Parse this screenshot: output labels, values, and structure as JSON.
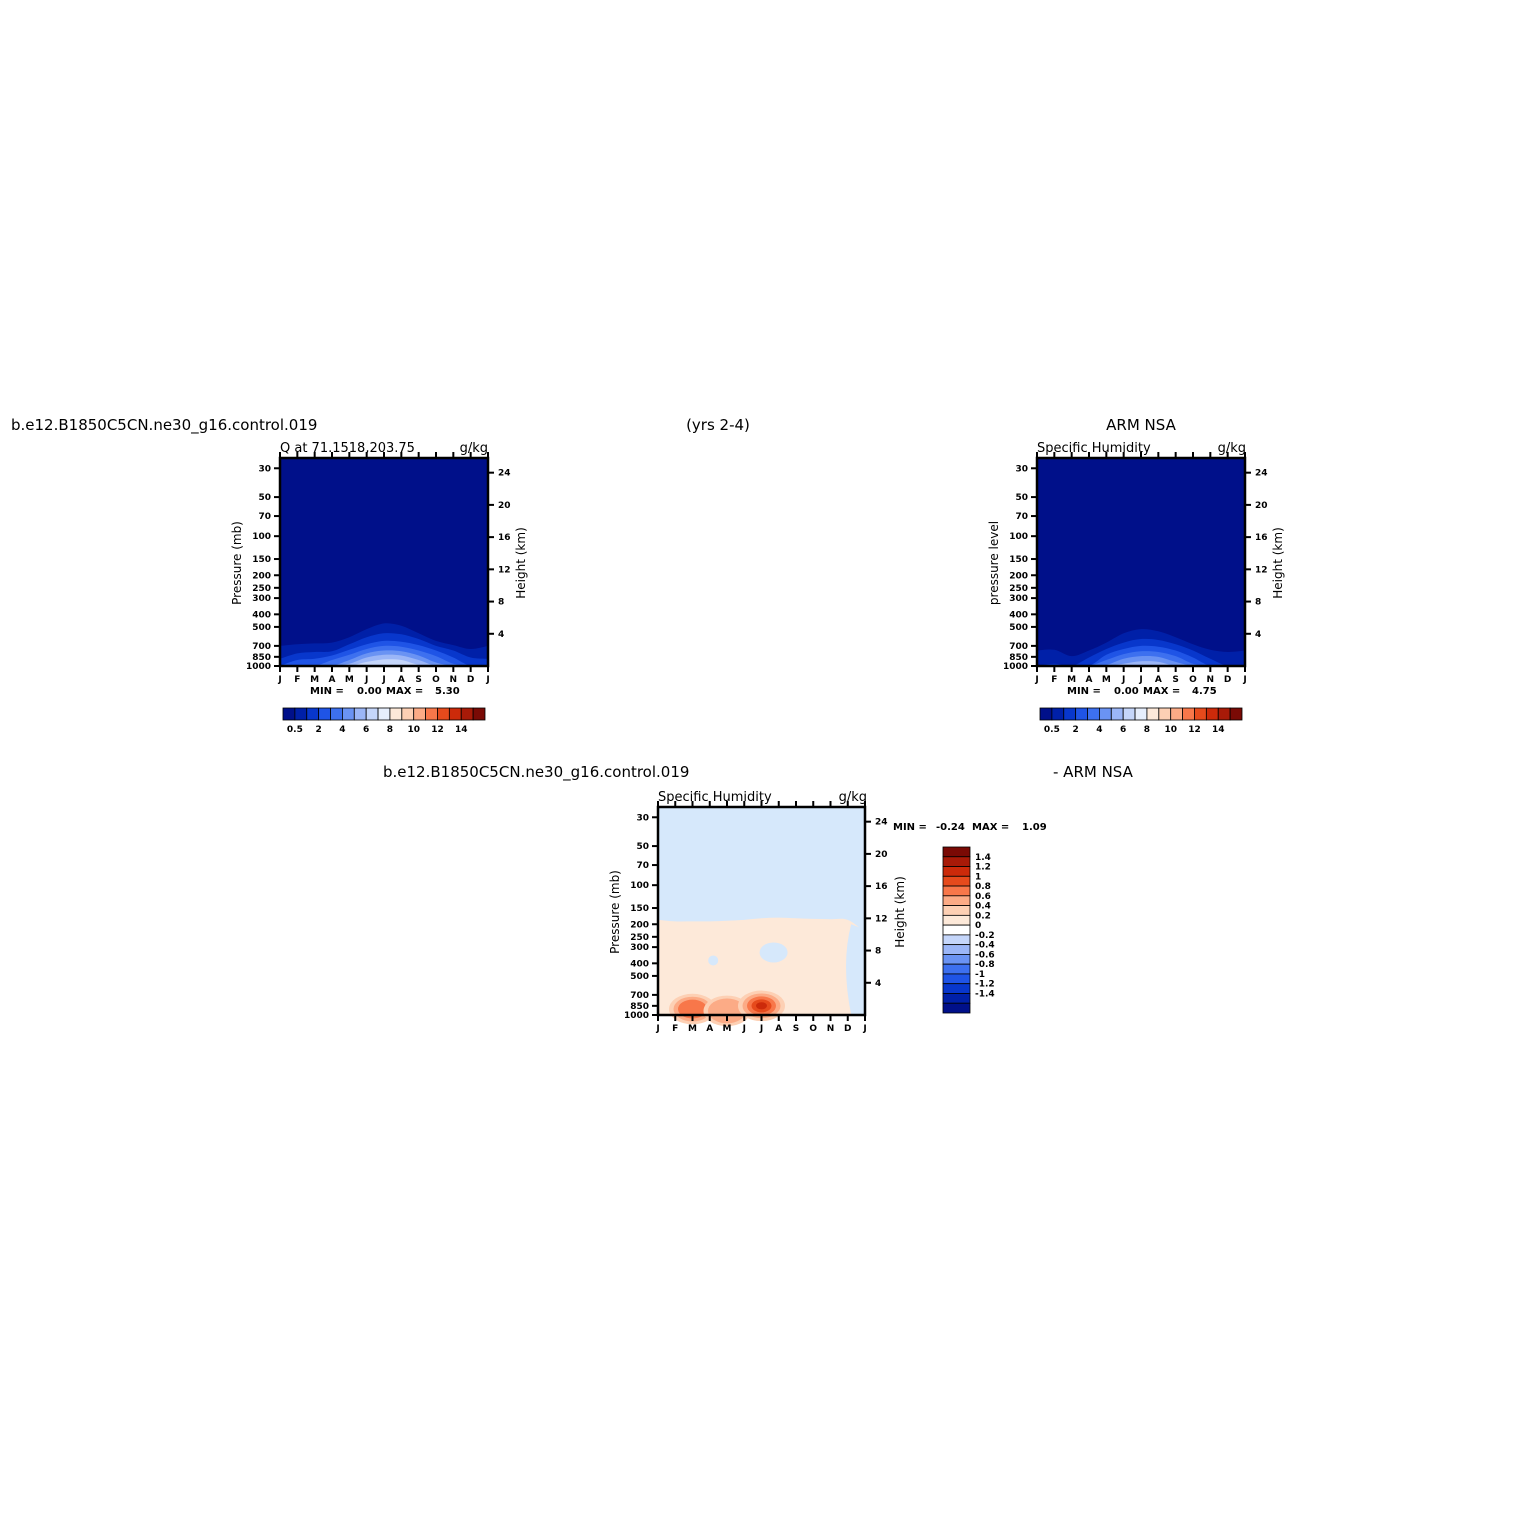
{
  "header": {
    "left": "b.e12.B1850C5CN.ne30_g16.control.019",
    "center": "(yrs 2-4)",
    "right": "ARM NSA"
  },
  "diff_header": {
    "left": "b.e12.B1850C5CN.ne30_g16.control.019",
    "right": "- ARM NSA"
  },
  "pressure_ticks": [
    30,
    50,
    70,
    100,
    150,
    200,
    250,
    300,
    400,
    500,
    700,
    850,
    1000
  ],
  "height_ticks": [
    24,
    20,
    16,
    12,
    8,
    4
  ],
  "months": [
    "J",
    "F",
    "M",
    "A",
    "M",
    "J",
    "J",
    "A",
    "S",
    "O",
    "N",
    "D",
    "J"
  ],
  "colors": {
    "blue_ramp": [
      "#00108a",
      "#0020a8",
      "#0837cc",
      "#1f54e6",
      "#3d70ef",
      "#6a93f3",
      "#9bb6f7",
      "#c5d6fa",
      "#ffffff"
    ],
    "diff_neg": "#d6e8fb",
    "diff_pos": [
      "#fde9d9",
      "#fdd0b4",
      "#fcab86",
      "#f8774a",
      "#e64a1c",
      "#cc2a0a"
    ]
  },
  "panels": [
    {
      "id": "model",
      "title_left": "Q at 71.1518,203.75",
      "title_right": "g/kg",
      "left_axis_label": "Pressure (mb)",
      "right_axis_label": "Height (km)",
      "min_label": "MIN =",
      "min_value": "0.00",
      "max_label": "MAX =",
      "max_value": "5.30"
    },
    {
      "id": "obs",
      "title_left": "Specific Humidity",
      "title_right": "g/kg",
      "left_axis_label": "pressure level",
      "right_axis_label": "Height (km)",
      "min_label": "MIN =",
      "min_value": "0.00",
      "max_label": "MAX =",
      "max_value": "4.75"
    },
    {
      "id": "diff",
      "title_left": "Specific Humidity",
      "title_right": "g/kg",
      "left_axis_label": "Pressure (mb)",
      "right_axis_label": "Height (km)",
      "min_label": "MIN =",
      "min_value": "-0.24",
      "max_label": "MAX =",
      "max_value": "1.09"
    }
  ],
  "colorbar_horizontal": {
    "labels": [
      "0.5",
      "2",
      "4",
      "6",
      "8",
      "10",
      "12",
      "14"
    ],
    "colors": [
      "#00108a",
      "#0020a8",
      "#0837cc",
      "#1f54e6",
      "#3d70ef",
      "#6a93f3",
      "#9bb6f7",
      "#c5d6fa",
      "#e6eefc",
      "#fde9d9",
      "#fdd0b4",
      "#fcab86",
      "#f8774a",
      "#e64a1c",
      "#cc2a0a",
      "#a81a08",
      "#7a0a05"
    ]
  },
  "colorbar_vertical": {
    "labels": [
      "1.4",
      "1.2",
      "1",
      "0.8",
      "0.6",
      "0.4",
      "0.2",
      "0",
      "-0.2",
      "-0.4",
      "-0.6",
      "-0.8",
      "-1",
      "-1.2",
      "-1.4"
    ],
    "colors": [
      "#7a0a05",
      "#a81a08",
      "#cc2a0a",
      "#e64a1c",
      "#f8774a",
      "#fcab86",
      "#fdd0b4",
      "#fde9d9",
      "#ffffff",
      "#c5d6fa",
      "#9bb6f7",
      "#6a93f3",
      "#3d70ef",
      "#1f54e6",
      "#0837cc",
      "#0020a8",
      "#00108a"
    ]
  },
  "chart_data": [
    {
      "type": "heatmap",
      "title": "Q at 71.1518,203.75",
      "units": "g/kg",
      "xlabel": "",
      "ylabel": "Pressure (mb)",
      "ylabel_right": "Height (km)",
      "x": [
        "J",
        "F",
        "M",
        "A",
        "M",
        "J",
        "J",
        "A",
        "S",
        "O",
        "N",
        "D",
        "J"
      ],
      "y_pressure_mb": [
        30,
        50,
        70,
        100,
        150,
        200,
        250,
        300,
        400,
        500,
        700,
        850,
        1000
      ],
      "levels": [
        0.5,
        1,
        1.5,
        2,
        2.5,
        3,
        3.5,
        4,
        4.5,
        5
      ],
      "contours_top_pressure_mb": [
        [
          700,
          680,
          670,
          660,
          600,
          520,
          470,
          490,
          560,
          640,
          690,
          740,
          700
        ],
        [
          880,
          800,
          780,
          770,
          680,
          600,
          560,
          570,
          620,
          700,
          760,
          860,
          880
        ],
        [
          1000,
          900,
          880,
          830,
          750,
          680,
          640,
          650,
          690,
          760,
          860,
          1000,
          1000
        ],
        [
          1000,
          1000,
          1000,
          900,
          820,
          740,
          700,
          710,
          760,
          840,
          960,
          1000,
          1000
        ],
        [
          1000,
          1000,
          1000,
          1000,
          900,
          800,
          760,
          770,
          830,
          940,
          1000,
          1000,
          1000
        ],
        [
          1000,
          1000,
          1000,
          1000,
          960,
          860,
          820,
          830,
          900,
          1000,
          1000,
          1000,
          1000
        ],
        [
          1000,
          1000,
          1000,
          1000,
          1000,
          930,
          890,
          900,
          980,
          1000,
          1000,
          1000,
          1000
        ]
      ],
      "min": 0.0,
      "max": 5.3
    },
    {
      "type": "heatmap",
      "title": "Specific Humidity",
      "units": "g/kg",
      "xlabel": "",
      "ylabel": "pressure level",
      "ylabel_right": "Height (km)",
      "x": [
        "J",
        "F",
        "M",
        "A",
        "M",
        "J",
        "J",
        "A",
        "S",
        "O",
        "N",
        "D",
        "J"
      ],
      "y_pressure_mb": [
        30,
        50,
        70,
        100,
        150,
        200,
        250,
        300,
        400,
        500,
        700,
        850,
        1000
      ],
      "levels": [
        0.5,
        1,
        1.5,
        2,
        2.5,
        3,
        3.5,
        4,
        4.5
      ],
      "contours_top_pressure_mb": [
        [
          760,
          750,
          840,
          760,
          660,
          560,
          520,
          540,
          600,
          680,
          750,
          780,
          760
        ],
        [
          1000,
          960,
          1000,
          860,
          740,
          660,
          620,
          630,
          680,
          760,
          880,
          1000,
          1000
        ],
        [
          1000,
          1000,
          1000,
          1000,
          820,
          740,
          700,
          710,
          760,
          860,
          1000,
          1000,
          1000
        ],
        [
          1000,
          1000,
          1000,
          1000,
          900,
          810,
          770,
          780,
          840,
          960,
          1000,
          1000,
          1000
        ],
        [
          1000,
          1000,
          1000,
          1000,
          980,
          880,
          840,
          850,
          930,
          1000,
          1000,
          1000,
          1000
        ],
        [
          1000,
          1000,
          1000,
          1000,
          1000,
          960,
          920,
          930,
          1000,
          1000,
          1000,
          1000,
          1000
        ]
      ],
      "min": 0.0,
      "max": 4.75
    },
    {
      "type": "heatmap",
      "title": "Specific Humidity",
      "units": "g/kg",
      "xlabel": "",
      "ylabel": "Pressure (mb)",
      "ylabel_right": "Height (km)",
      "x": [
        "J",
        "F",
        "M",
        "A",
        "M",
        "J",
        "J",
        "A",
        "S",
        "O",
        "N",
        "D",
        "J"
      ],
      "y_pressure_mb": [
        30,
        50,
        70,
        100,
        150,
        200,
        250,
        300,
        400,
        500,
        700,
        850,
        1000
      ],
      "levels": [
        -1.4,
        -1.2,
        -1,
        -0.8,
        -0.6,
        -0.4,
        -0.2,
        0,
        0.2,
        0.4,
        0.6,
        0.8,
        1,
        1.2,
        1.4
      ],
      "positive_region_top_pressure_mb": [
        185,
        190,
        190,
        190,
        188,
        185,
        180,
        178,
        180,
        182,
        183,
        185,
        230
      ],
      "positive_cores": [
        {
          "month_index": 2,
          "pressure_mb": 900,
          "value": 0.6
        },
        {
          "month_index": 4,
          "pressure_mb": 930,
          "value": 0.4
        },
        {
          "month_index": 6,
          "pressure_mb": 850,
          "value": 1.0
        }
      ],
      "min": -0.24,
      "max": 1.09
    }
  ]
}
